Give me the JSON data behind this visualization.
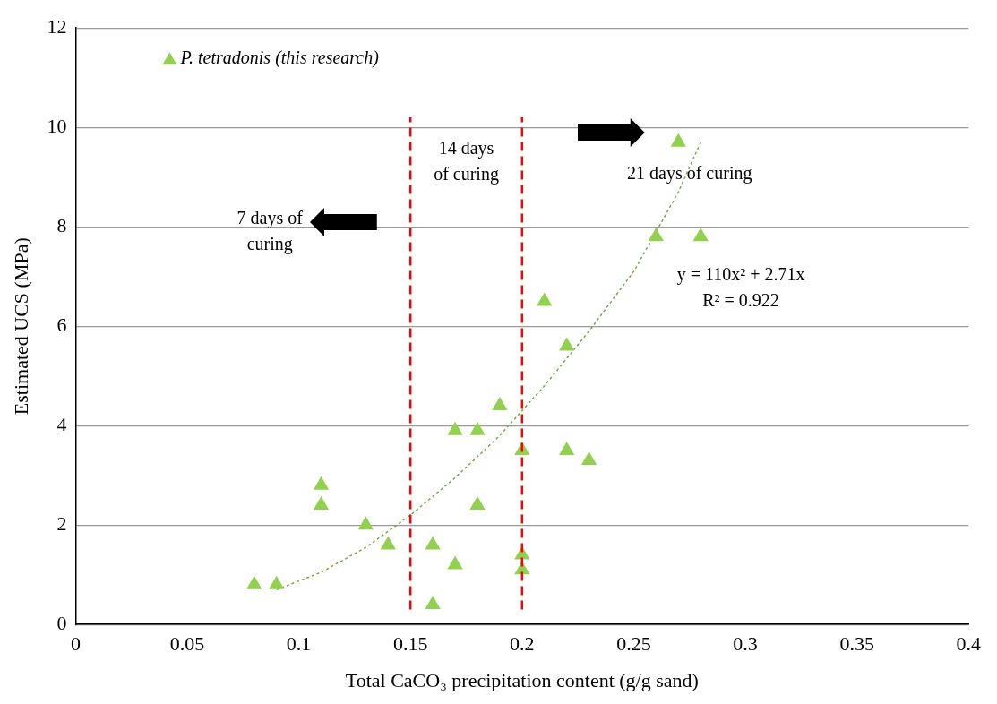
{
  "chart_data": {
    "type": "scatter",
    "xlabel": "Total CaCO₃ precipitation content (g/g sand)",
    "ylabel": "Estimated UCS (MPa)",
    "xlim": [
      0,
      0.4
    ],
    "xticks": [
      0,
      0.05,
      0.1,
      0.15,
      0.2,
      0.25,
      0.3,
      0.35,
      0.4
    ],
    "ylim": [
      0,
      12
    ],
    "yticks": [
      0,
      2,
      4,
      6,
      8,
      10,
      12
    ],
    "grid": "y",
    "legend": "top left",
    "marker": "triangle",
    "series": [
      {
        "name": "P. tetradonis (this research)",
        "color": "#92d050",
        "x": [
          0.08,
          0.09,
          0.11,
          0.11,
          0.13,
          0.14,
          0.16,
          0.16,
          0.17,
          0.17,
          0.18,
          0.18,
          0.19,
          0.2,
          0.2,
          0.2,
          0.21,
          0.22,
          0.22,
          0.23,
          0.26,
          0.27,
          0.28
        ],
        "values": [
          0.8,
          0.8,
          2.8,
          2.4,
          2.0,
          1.6,
          1.6,
          0.4,
          1.2,
          3.9,
          3.9,
          2.4,
          4.4,
          3.5,
          1.4,
          1.1,
          6.5,
          5.6,
          3.5,
          3.3,
          7.8,
          9.7,
          7.8
        ]
      },
      {
        "type": "line",
        "color": "#70ad47",
        "line_style": "dotted",
        "marker": "none",
        "x": [
          0.09,
          0.11,
          0.13,
          0.15,
          0.17,
          0.19,
          0.21,
          0.23,
          0.25,
          0.27,
          0.28
        ],
        "values": [
          0.7,
          1.05,
          1.55,
          2.2,
          2.95,
          3.8,
          4.8,
          5.9,
          7.1,
          8.7,
          9.7
        ]
      }
    ],
    "ref_lines": [
      {
        "axis": "x",
        "value": 0.15,
        "color": "#ff0000",
        "line_style": "dashed"
      },
      {
        "axis": "x",
        "value": 0.2,
        "color": "#ff0000",
        "line_style": "dashed"
      }
    ],
    "annotations": [
      "7 days of\ncuring",
      "14 days\nof curing",
      "21 days of curing",
      "y = 110x² + 2.71x\nR² = 0.922"
    ]
  }
}
